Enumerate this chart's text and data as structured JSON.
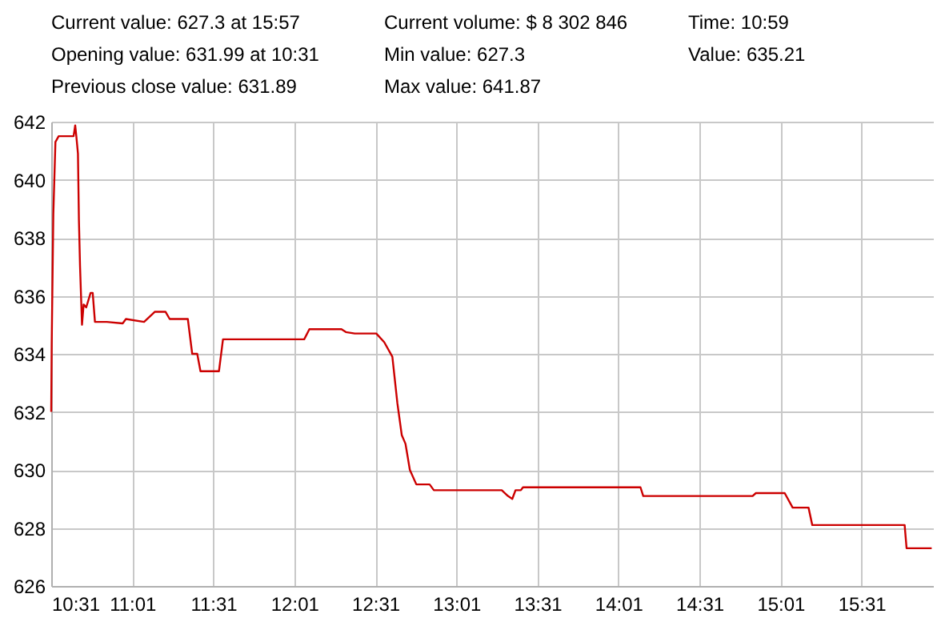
{
  "chart_data": {
    "type": "line",
    "annotations": [
      "Current value:   627.3  at  15:57",
      "Current volume: $ 8 302 846",
      "Time:  10:59",
      "Opening value: 631.99  at  10:31",
      "Min value: 627.3",
      "Value: 635.21",
      "Previous close value: 631.89",
      "Max value: 641.87"
    ],
    "x": [
      10.517,
      10.52,
      10.53,
      10.543,
      10.563,
      10.655,
      10.665,
      10.672,
      10.682,
      10.688,
      10.695,
      10.707,
      10.717,
      10.733,
      10.76,
      10.773,
      10.787,
      10.86,
      10.958,
      10.978,
      11.09,
      11.157,
      11.222,
      11.248,
      11.36,
      11.387,
      11.418,
      11.438,
      11.552,
      11.577,
      12.078,
      12.11,
      12.308,
      12.335,
      12.39,
      12.523,
      12.572,
      12.622,
      12.653,
      12.68,
      12.703,
      12.73,
      12.77,
      12.852,
      12.878,
      13.297,
      13.335,
      13.362,
      13.382,
      13.415,
      13.428,
      14.153,
      14.17,
      14.845,
      14.865,
      15.043,
      15.092,
      15.19,
      15.213,
      15.783,
      15.795,
      15.95
    ],
    "series": [
      {
        "color": "#cc0000",
        "values": [
          632.0,
          634.3,
          638.8,
          641.3,
          641.5,
          641.5,
          641.87,
          641.5,
          640.9,
          638.6,
          637.0,
          635.0,
          635.7,
          635.6,
          636.1,
          636.1,
          635.1,
          635.1,
          635.05,
          635.2,
          635.1,
          635.45,
          635.45,
          635.2,
          635.2,
          634.0,
          634.0,
          633.4,
          633.4,
          634.5,
          634.5,
          634.85,
          634.85,
          634.75,
          634.7,
          634.7,
          634.4,
          633.9,
          632.3,
          631.2,
          630.9,
          630.0,
          629.5,
          629.5,
          629.3,
          629.3,
          629.1,
          629.0,
          629.3,
          629.3,
          629.4,
          629.4,
          629.1,
          629.1,
          629.2,
          629.2,
          628.7,
          628.7,
          628.1,
          628.1,
          627.3,
          627.3
        ]
      }
    ],
    "xlim": [
      10.517,
      15.958
    ],
    "xticks": [
      {
        "value": 10.517,
        "label": "10:31"
      },
      {
        "value": 11.017,
        "label": "11:01"
      },
      {
        "value": 11.517,
        "label": "11:31"
      },
      {
        "value": 12.017,
        "label": "12:01"
      },
      {
        "value": 12.517,
        "label": "12:31"
      },
      {
        "value": 13.017,
        "label": "13:01"
      },
      {
        "value": 13.517,
        "label": "13:31"
      },
      {
        "value": 14.017,
        "label": "14:01"
      },
      {
        "value": 14.517,
        "label": "14:31"
      },
      {
        "value": 15.017,
        "label": "15:01"
      },
      {
        "value": 15.517,
        "label": "15:31"
      }
    ],
    "ylim": [
      626,
      642
    ],
    "yticks": [
      626,
      628,
      630,
      632,
      634,
      636,
      638,
      640,
      642
    ],
    "grid": true,
    "marker": "none",
    "line_style": "solid"
  }
}
